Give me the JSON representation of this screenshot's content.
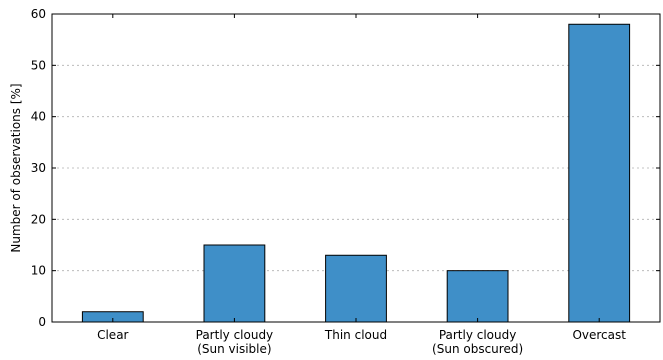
{
  "chart_data": {
    "type": "bar",
    "categories": [
      [
        "Clear"
      ],
      [
        "Partly cloudy",
        "(Sun visible)"
      ],
      [
        "Thin cloud"
      ],
      [
        "Partly cloudy",
        "(Sun obscured)"
      ],
      [
        "Overcast"
      ]
    ],
    "values": [
      2,
      15,
      13,
      10,
      58
    ],
    "title": "",
    "xlabel": "",
    "ylabel": "Number of observations [%]",
    "ylim": [
      0,
      60
    ],
    "yticks": [
      0,
      10,
      20,
      30,
      40,
      50,
      60
    ],
    "grid": "horizontal-dotted",
    "bar_color": "#3f8fc8"
  }
}
